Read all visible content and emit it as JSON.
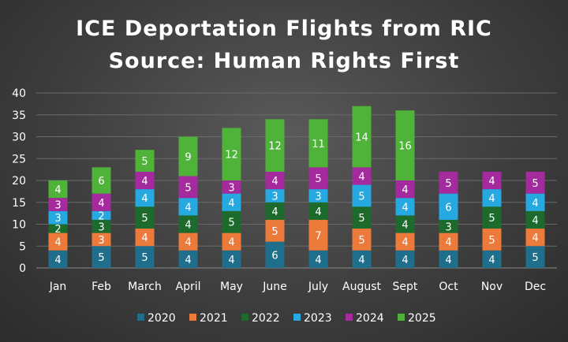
{
  "chart_data": {
    "type": "bar",
    "stacked": true,
    "title": "ICE Deportation Flights from RIC",
    "subtitle": "Source: Human Rights First",
    "categories": [
      "Jan",
      "Feb",
      "March",
      "April",
      "May",
      "June",
      "July",
      "August",
      "Sept",
      "Oct",
      "Nov",
      "Dec"
    ],
    "series": [
      {
        "name": "2020",
        "color": "#1f6e8c",
        "values": [
          4,
          5,
          5,
          4,
          4,
          6,
          4,
          4,
          4,
          4,
          4,
          5
        ]
      },
      {
        "name": "2021",
        "color": "#ec7a3a",
        "values": [
          4,
          3,
          4,
          4,
          4,
          5,
          7,
          5,
          4,
          4,
          5,
          4
        ]
      },
      {
        "name": "2022",
        "color": "#1d6b2c",
        "values": [
          2,
          3,
          5,
          4,
          5,
          4,
          4,
          5,
          4,
          3,
          5,
          4
        ]
      },
      {
        "name": "2023",
        "color": "#26a9e0",
        "values": [
          3,
          2,
          4,
          4,
          4,
          3,
          3,
          5,
          4,
          6,
          4,
          4
        ]
      },
      {
        "name": "2024",
        "color": "#a52a9e",
        "values": [
          3,
          4,
          4,
          5,
          3,
          4,
          5,
          4,
          4,
          5,
          4,
          5
        ]
      },
      {
        "name": "2025",
        "color": "#4fb33a",
        "values": [
          4,
          6,
          5,
          9,
          12,
          12,
          11,
          14,
          16,
          null,
          null,
          null
        ]
      }
    ],
    "yticks": [
      "0",
      "5",
      "10",
      "15",
      "20",
      "25",
      "30",
      "35",
      "40"
    ],
    "ylim": [
      0,
      40
    ],
    "xlabel": "",
    "ylabel": "",
    "grid": true,
    "legend_position": "bottom"
  }
}
